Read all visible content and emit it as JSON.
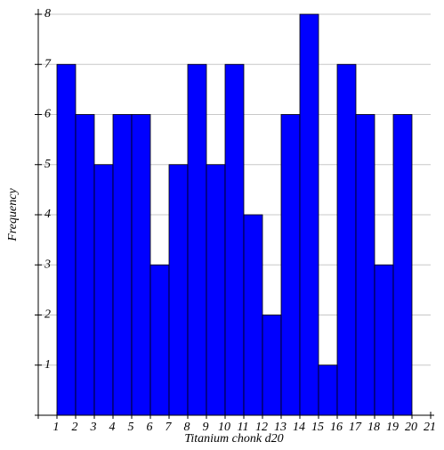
{
  "chart_data": {
    "type": "histogram",
    "xlabel": "Titanium chonk d20",
    "ylabel": "Frequency",
    "bins": [
      1,
      2,
      3,
      4,
      5,
      6,
      7,
      8,
      9,
      10,
      11,
      12,
      13,
      14,
      15,
      16,
      17,
      18,
      19,
      20
    ],
    "values": [
      7,
      6,
      5,
      6,
      6,
      3,
      5,
      7,
      5,
      7,
      4,
      2,
      6,
      8,
      1,
      7,
      6,
      3,
      6
    ],
    "color": "#0000ff",
    "xlim": [
      0,
      21
    ],
    "xticks": [
      1,
      2,
      3,
      4,
      5,
      6,
      7,
      8,
      9,
      10,
      11,
      12,
      13,
      14,
      15,
      16,
      17,
      18,
      19,
      20,
      21
    ],
    "ylim": [
      0,
      8
    ],
    "yticks": [
      1,
      2,
      3,
      4,
      5,
      6,
      7,
      8
    ],
    "grid": true
  }
}
